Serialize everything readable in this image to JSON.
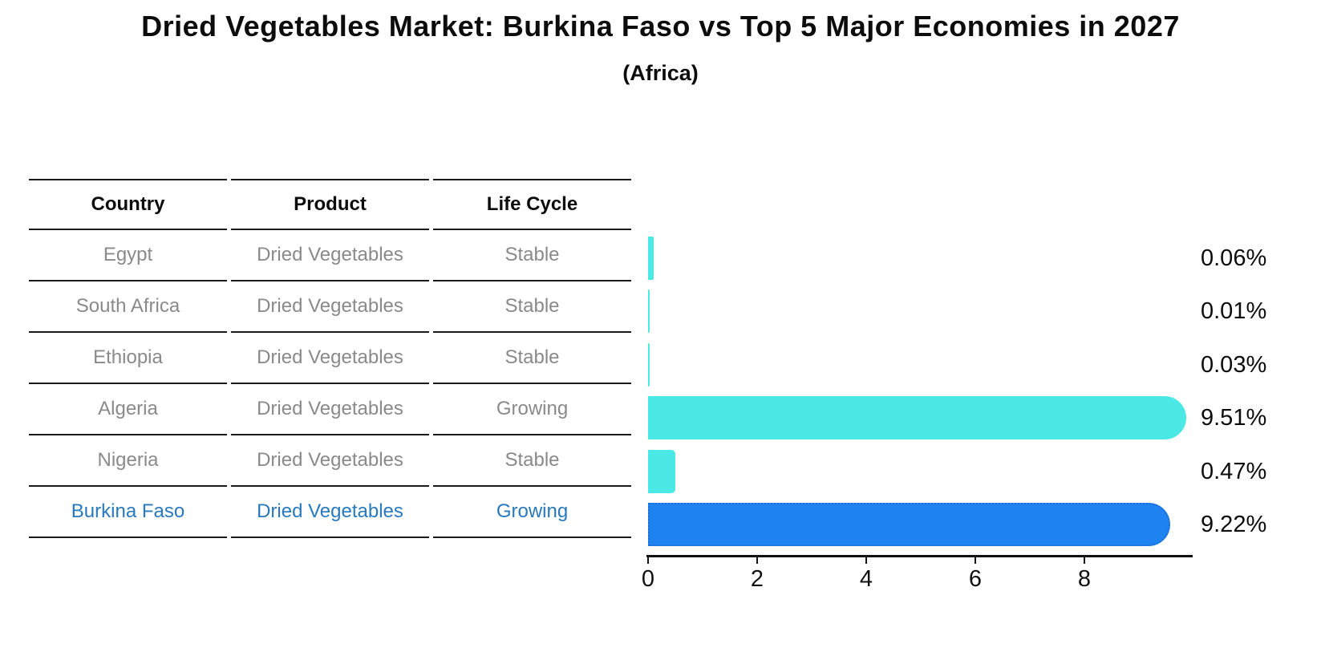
{
  "header": {
    "title": "Dried Vegetables Market: Burkina Faso vs Top 5 Major Economies in 2027",
    "subtitle": "(Africa)"
  },
  "table": {
    "columns": [
      "Country",
      "Product",
      "Life Cycle"
    ],
    "rows": [
      {
        "country": "Egypt",
        "product": "Dried Vegetables",
        "life_cycle": "Stable",
        "highlight": false
      },
      {
        "country": "South Africa",
        "product": "Dried Vegetables",
        "life_cycle": "Stable",
        "highlight": false
      },
      {
        "country": "Ethiopia",
        "product": "Dried Vegetables",
        "life_cycle": "Stable",
        "highlight": false
      },
      {
        "country": "Algeria",
        "product": "Dried Vegetables",
        "life_cycle": "Growing",
        "highlight": false
      },
      {
        "country": "Nigeria",
        "product": "Dried Vegetables",
        "life_cycle": "Stable",
        "highlight": false
      },
      {
        "country": "Burkina Faso",
        "product": "Dried Vegetables",
        "life_cycle": "Growing",
        "highlight": true
      }
    ]
  },
  "chart_data": {
    "type": "bar",
    "orientation": "horizontal",
    "title": "Dried Vegetables Market: Burkina Faso vs Top 5 Major Economies in 2027",
    "subtitle": "(Africa)",
    "categories": [
      "Egypt",
      "South Africa",
      "Ethiopia",
      "Algeria",
      "Nigeria",
      "Burkina Faso"
    ],
    "values": [
      0.06,
      0.01,
      0.03,
      9.51,
      0.47,
      9.22
    ],
    "value_labels": [
      "0.06%",
      "0.01%",
      "0.03%",
      "9.51%",
      "0.47%",
      "9.22%"
    ],
    "x_ticks": [
      0,
      2,
      4,
      6,
      8
    ],
    "xlim": [
      0,
      10
    ],
    "grid": false,
    "legend": false,
    "highlight_index": 5,
    "colors": {
      "bar_default": "#4be9e6",
      "bar_highlight": "#1e82f0",
      "bar_highlight_border": "#1b6fd6",
      "highlight_text": "#2879be",
      "row_text": "#8a8a8a"
    }
  }
}
